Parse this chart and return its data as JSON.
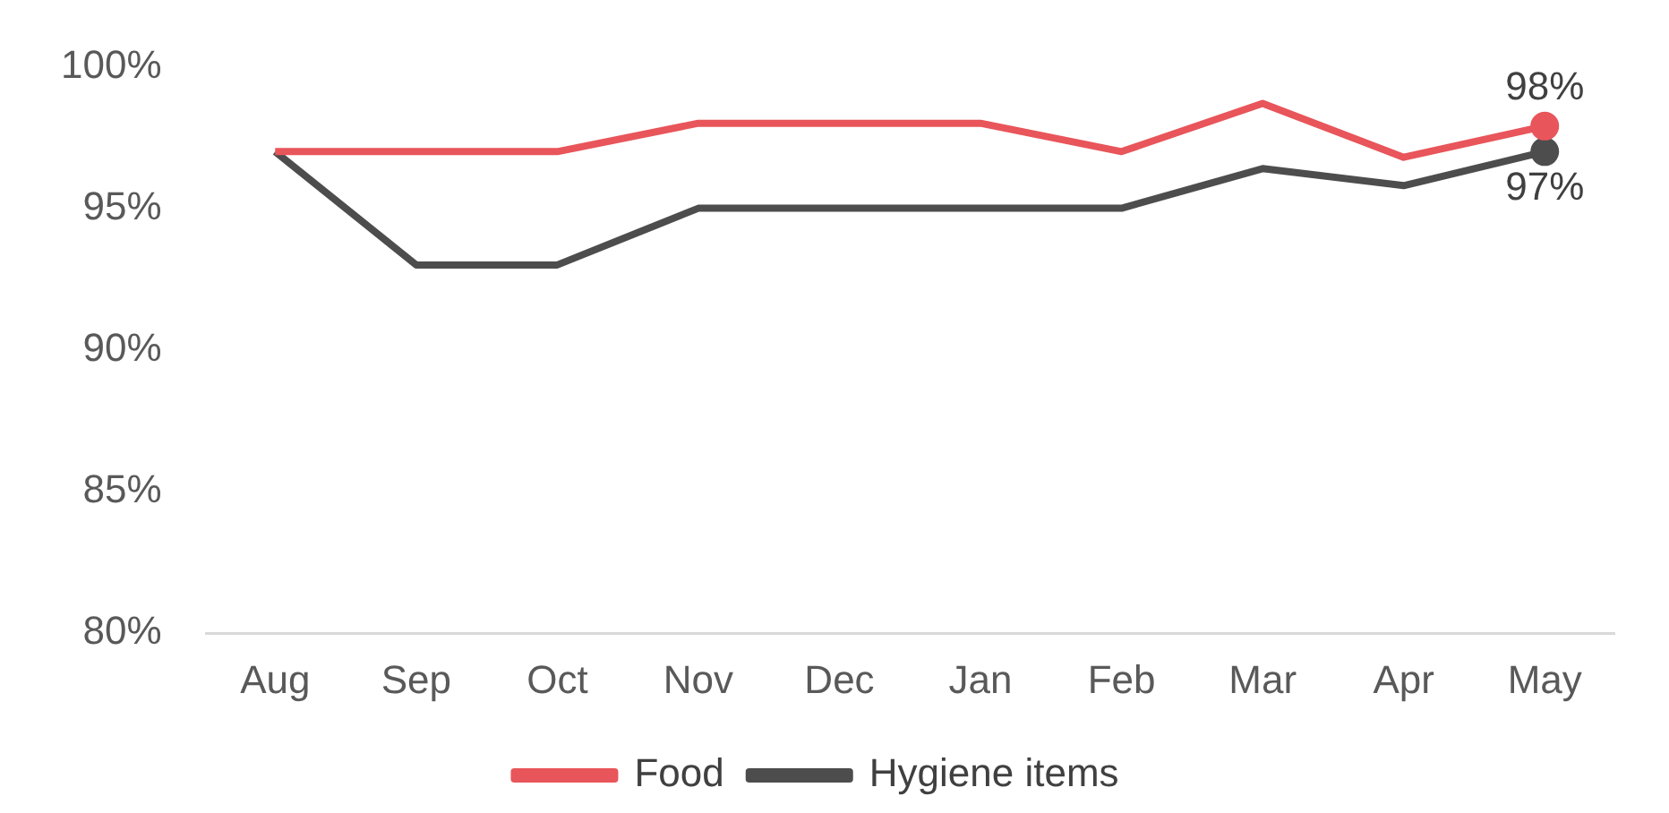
{
  "chart_data": {
    "type": "line",
    "categories": [
      "Aug",
      "Sep",
      "Oct",
      "Nov",
      "Dec",
      "Jan",
      "Feb",
      "Mar",
      "Apr",
      "May"
    ],
    "series": [
      {
        "name": "Food",
        "color": "#e8555a",
        "values": [
          97,
          97,
          97,
          98,
          98,
          98,
          97,
          98.7,
          96.8,
          97.9
        ],
        "value_labels": [
          null,
          null,
          null,
          null,
          null,
          null,
          null,
          null,
          null,
          "98%"
        ]
      },
      {
        "name": "Hygiene items",
        "color": "#4d4d4d",
        "values": [
          97,
          93,
          93,
          95,
          95,
          95,
          95,
          96.4,
          95.8,
          97
        ],
        "value_labels": [
          null,
          null,
          null,
          null,
          null,
          null,
          null,
          null,
          null,
          "97%"
        ]
      }
    ],
    "ylim": [
      80,
      100
    ],
    "yticks": [
      {
        "value": 80,
        "label": "80%"
      },
      {
        "value": 85,
        "label": "85%"
      },
      {
        "value": 90,
        "label": "90%"
      },
      {
        "value": 95,
        "label": "95%"
      },
      {
        "value": 100,
        "label": "100%"
      }
    ],
    "grid": false,
    "legend": "bottom",
    "line_style": "solid"
  }
}
